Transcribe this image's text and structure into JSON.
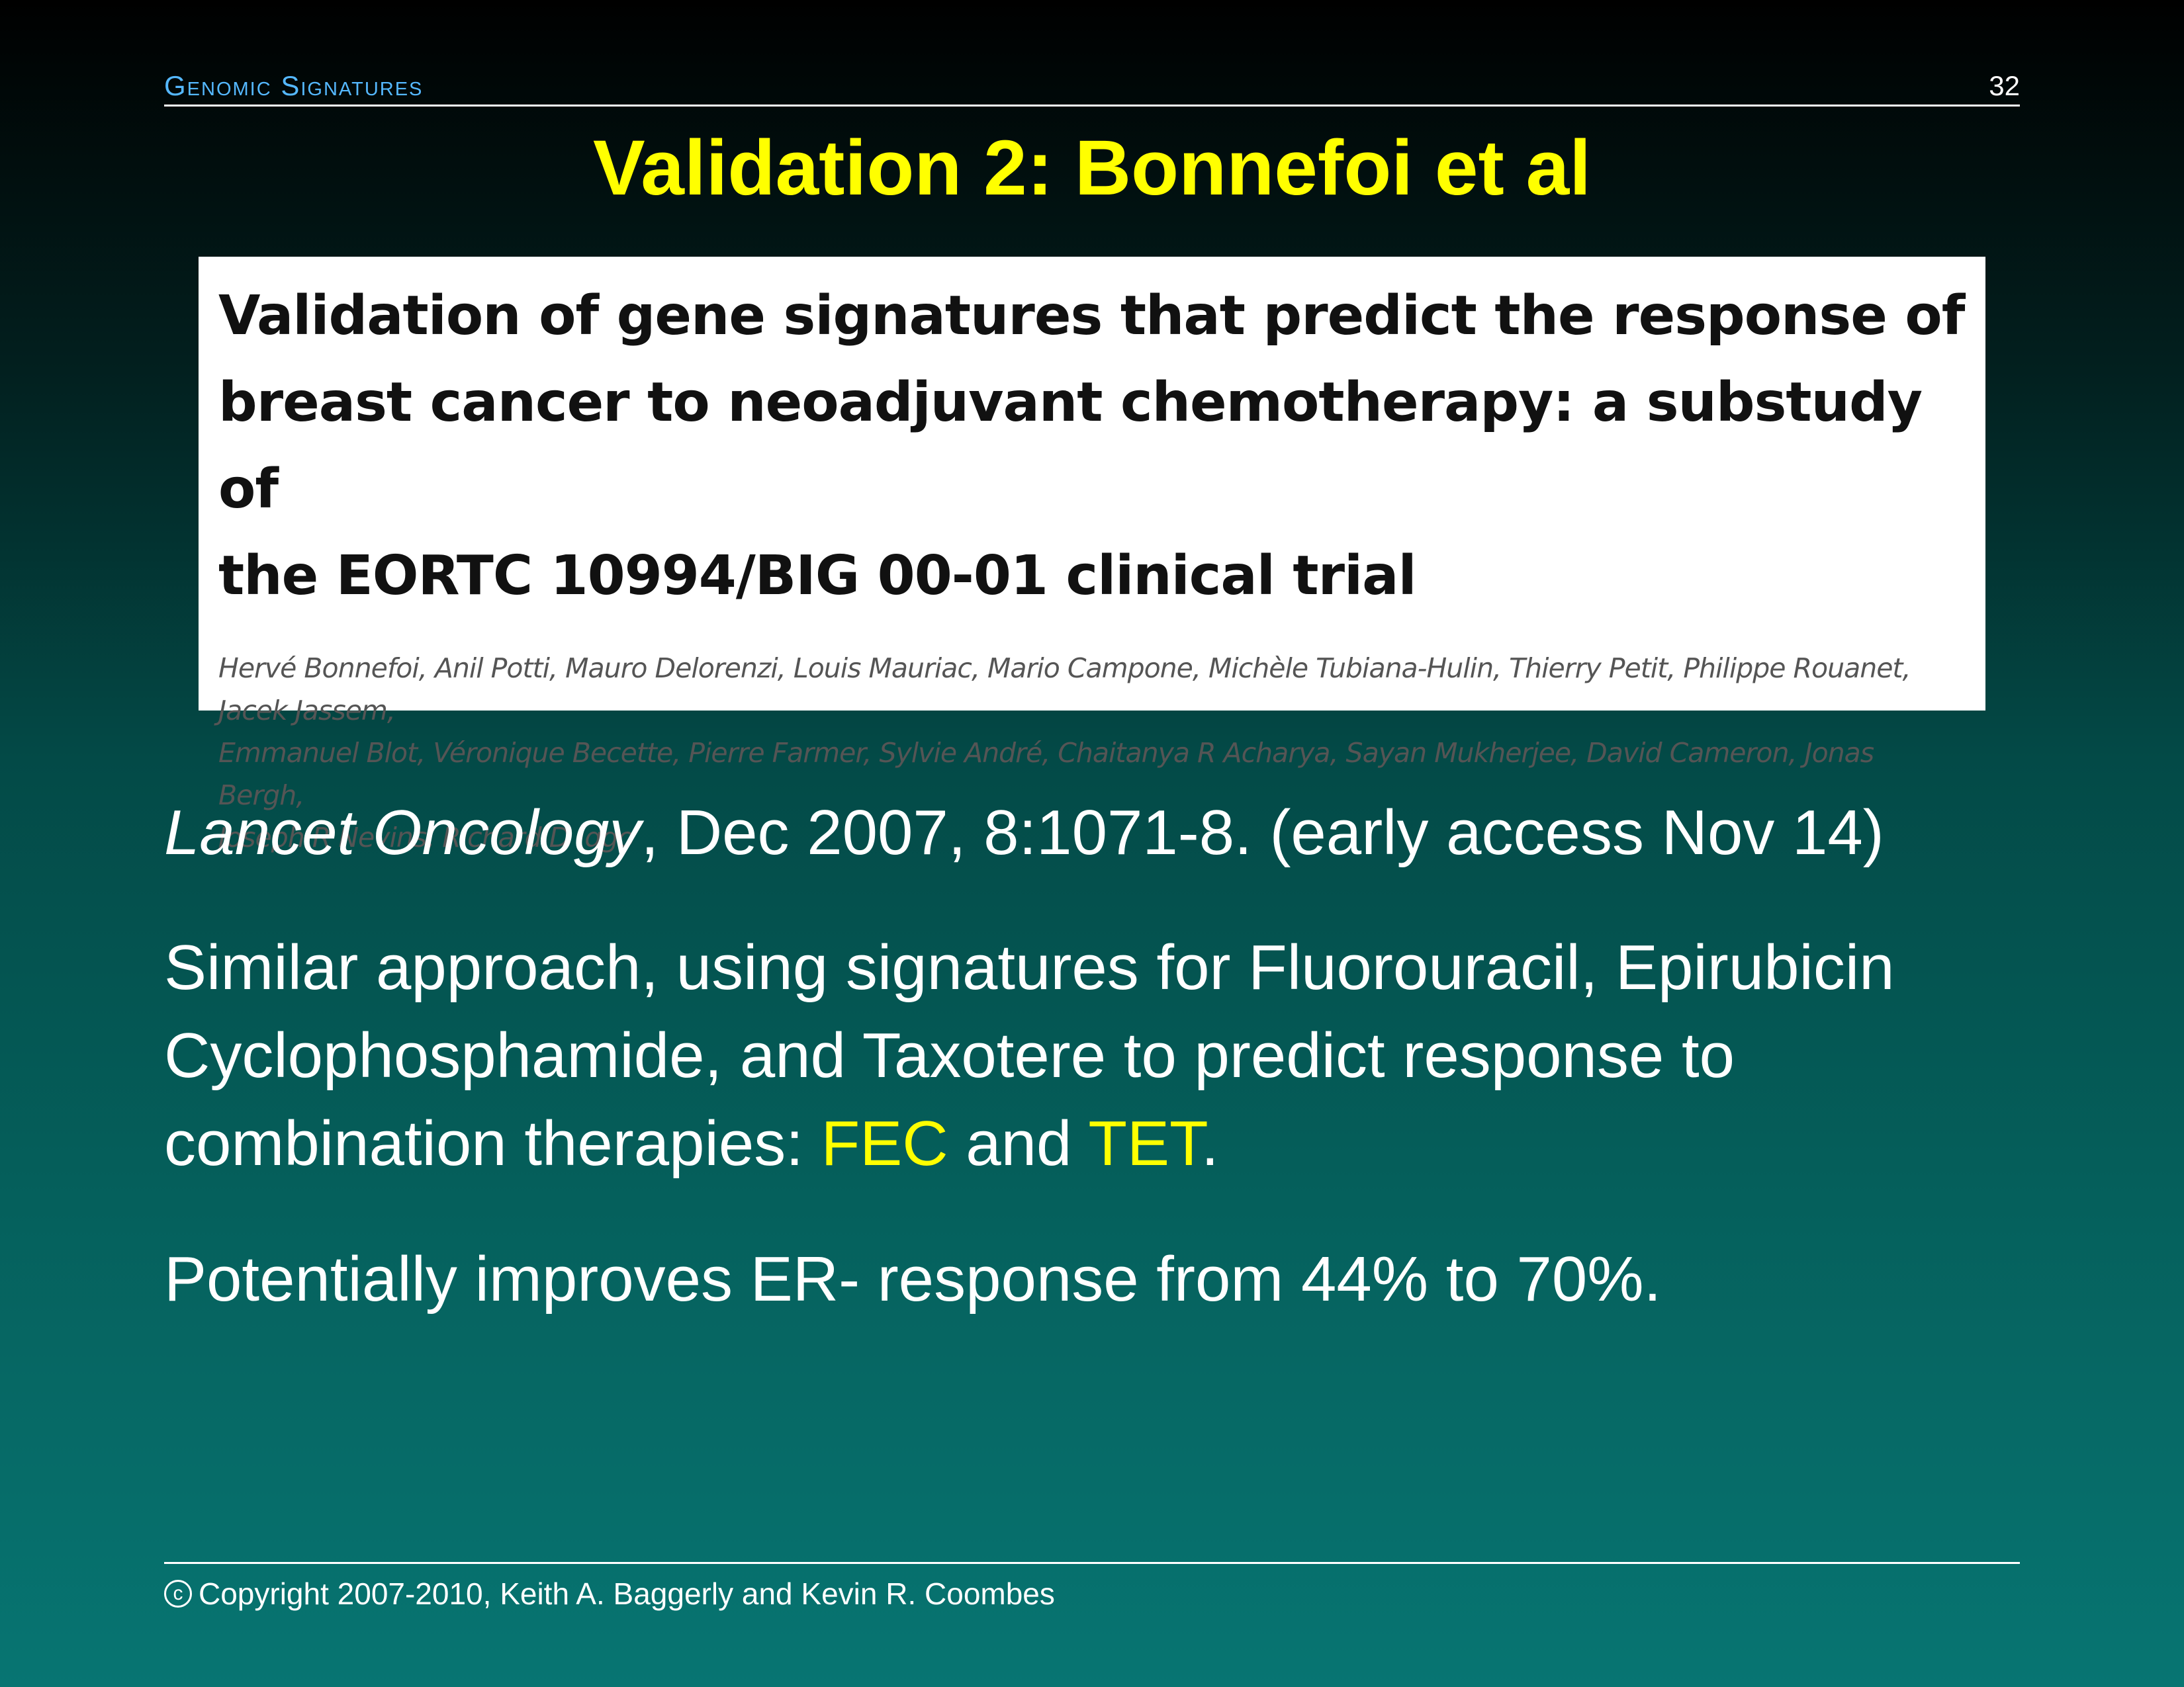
{
  "header": {
    "section": "Genomic Signatures",
    "slide_number": "32"
  },
  "slide": {
    "title": "Validation 2: Bonnefoi et al"
  },
  "paper": {
    "title_line1": "Validation of gene signatures that predict the response of",
    "title_line2": "breast cancer to neoadjuvant chemotherapy: a substudy of",
    "title_line3": "the EORTC 10994/BIG 00-01 clinical trial",
    "authors_line1": "Hervé Bonnefoi, Anil Potti, Mauro Delorenzi, Louis Mauriac, Mario Campone, Michèle Tubiana-Hulin, Thierry Petit, Philippe Rouanet, Jacek Jassem,",
    "authors_line2": "Emmanuel Blot, Véronique Becette, Pierre Farmer, Sylvie André, Chaitanya R Acharya, Sayan Mukherjee, David Cameron, Jonas Bergh,",
    "authors_line3": "Joseph R Nevins, Richard D Iggo"
  },
  "body": {
    "citation_journal": "Lancet Oncology",
    "citation_rest": ", Dec 2007, 8:1071-8. (early access Nov 14)",
    "approach_line1": "Similar approach, using signatures for Fluorouracil, Epirubicin",
    "approach_line2": "Cyclophosphamide, and Taxotere to predict response to",
    "approach_line3_start": "combination therapies: ",
    "fec": "FEC",
    "and": " and ",
    "tet": "TET",
    "period": ".",
    "improves": "Potentially improves ER- response from 44% to 70%."
  },
  "footer": {
    "copyright_symbol": "c",
    "copyright_text": "Copyright 2007-2010, Keith A. Baggerly and Kevin R. Coombes"
  },
  "colors": {
    "title": "#ffff00",
    "header_section": "#55b8ff",
    "highlight": "#ffff00"
  }
}
